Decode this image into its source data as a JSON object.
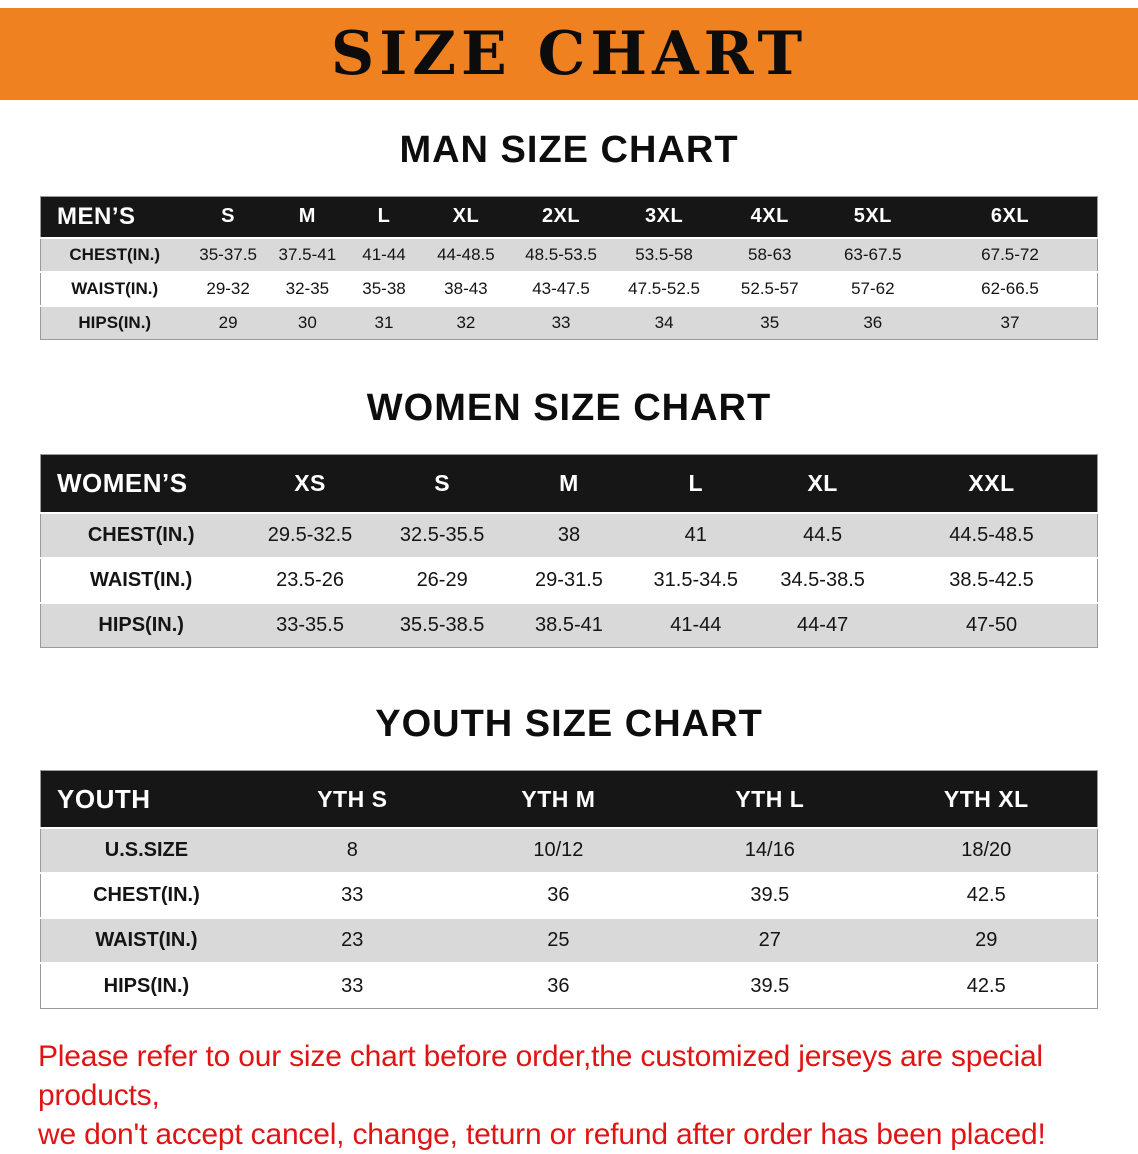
{
  "banner": {
    "title": "SIZE CHART"
  },
  "sections": {
    "men": {
      "heading": "MAN SIZE CHART"
    },
    "women": {
      "heading": "WOMEN SIZE CHART"
    },
    "youth": {
      "heading": "YOUTH SIZE CHART"
    }
  },
  "chart_data": [
    {
      "type": "table",
      "name": "men",
      "title": "MAN SIZE CHART",
      "header": [
        "MEN’S",
        "S",
        "M",
        "L",
        "XL",
        "2XL",
        "3XL",
        "4XL",
        "5XL",
        "6XL"
      ],
      "rows": [
        [
          "CHEST(IN.)",
          "35-37.5",
          "37.5-41",
          "41-44",
          "44-48.5",
          "48.5-53.5",
          "53.5-58",
          "58-63",
          "63-67.5",
          "67.5-72"
        ],
        [
          "WAIST(IN.)",
          "29-32",
          "32-35",
          "35-38",
          "38-43",
          "43-47.5",
          "47.5-52.5",
          "52.5-57",
          "57-62",
          "62-66.5"
        ],
        [
          "HIPS(IN.)",
          "29",
          "30",
          "31",
          "32",
          "33",
          "34",
          "35",
          "36",
          "37"
        ]
      ]
    },
    {
      "type": "table",
      "name": "women",
      "title": "WOMEN SIZE CHART",
      "header": [
        "WOMEN’S",
        "XS",
        "S",
        "M",
        "L",
        "XL",
        "XXL"
      ],
      "rows": [
        [
          "CHEST(IN.)",
          "29.5-32.5",
          "32.5-35.5",
          "38",
          "41",
          "44.5",
          "44.5-48.5"
        ],
        [
          "WAIST(IN.)",
          "23.5-26",
          "26-29",
          "29-31.5",
          "31.5-34.5",
          "34.5-38.5",
          "38.5-42.5"
        ],
        [
          "HIPS(IN.)",
          "33-35.5",
          "35.5-38.5",
          "38.5-41",
          "41-44",
          "44-47",
          "47-50"
        ]
      ]
    },
    {
      "type": "table",
      "name": "youth",
      "title": "YOUTH SIZE CHART",
      "header": [
        "YOUTH",
        "YTH S",
        "YTH M",
        "YTH L",
        "YTH XL"
      ],
      "rows": [
        [
          "U.S.SIZE",
          "8",
          "10/12",
          "14/16",
          "18/20"
        ],
        [
          "CHEST(IN.)",
          "33",
          "36",
          "39.5",
          "42.5"
        ],
        [
          "WAIST(IN.)",
          "23",
          "25",
          "27",
          "29"
        ],
        [
          "HIPS(IN.)",
          "33",
          "36",
          "39.5",
          "42.5"
        ]
      ]
    }
  ],
  "footer": {
    "line1": "Please refer to our size chart before order,the customized jerseys are special products,",
    "line2": "we don't accept cancel, change, teturn or refund after order has been placed!"
  },
  "colors": {
    "banner_orange": "#f08121",
    "header_black": "#161616",
    "row_gray": "#d9d9d9",
    "footer_red": "#e01414"
  }
}
